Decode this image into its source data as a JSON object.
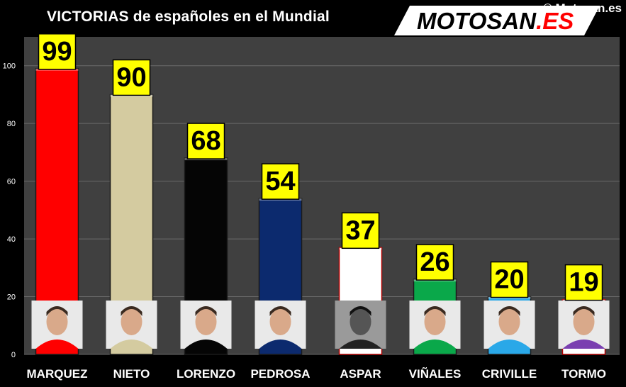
{
  "header": {
    "title": "VICTORIAS de españoles en el Mundial",
    "copyright": "© Motosan.es",
    "logo_text": "MOTOSAN",
    "logo_suffix": ".ES"
  },
  "chart_data": {
    "type": "bar",
    "title": "VICTORIAS de españoles en el Mundial",
    "categories": [
      "MARQUEZ",
      "NIETO",
      "LORENZO",
      "PEDROSA",
      "ASPAR",
      "VIÑALES",
      "CRIVILLE",
      "TORMO"
    ],
    "values": [
      99,
      90,
      68,
      54,
      37,
      26,
      20,
      19
    ],
    "data_labels": [
      "99",
      "90",
      "68",
      "54",
      "37",
      "26",
      "20",
      "19"
    ],
    "bar_colors": [
      "#ff0000",
      "#d4cba0",
      "#050505",
      "#0c2a6e",
      "#ffffff",
      "#0aa84a",
      "#2aa8e8",
      "#ffffff"
    ],
    "ylim": [
      0,
      110
    ],
    "yticks": [
      0,
      20,
      40,
      60,
      80,
      100
    ],
    "ytick_labels": [
      "0",
      "20",
      "40",
      "60",
      "80",
      "100"
    ],
    "xlabel": "",
    "ylabel": "",
    "grid": true,
    "legend": "none",
    "label_background": "#ffff00",
    "plot_background": "#404040"
  }
}
